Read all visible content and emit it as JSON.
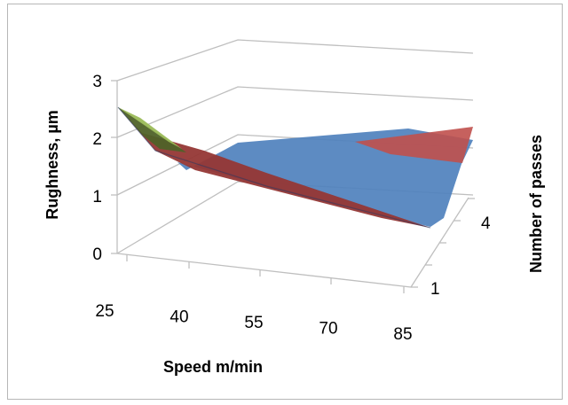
{
  "chart_data": {
    "type": "surface",
    "xlabel": "Speed m/min",
    "ylabel": "Rughness, µm",
    "zlabel": "Number of passes",
    "x": [
      25,
      40,
      55,
      70,
      85
    ],
    "passes": [
      1,
      4
    ],
    "ylim": [
      0,
      3
    ],
    "y_ticks": [
      "0",
      "1",
      "2",
      "3"
    ],
    "x_ticks": [
      "25",
      "40",
      "55",
      "70",
      "85"
    ],
    "z_ticks": [
      "1",
      "4"
    ],
    "series": [
      {
        "passes": 1,
        "values": [
          2.5,
          1.8,
          1.1,
          0.6,
          0.45
        ]
      },
      {
        "passes": 4,
        "values": [
          2.3,
          1.4,
          0.9,
          1.4,
          2.3
        ]
      }
    ],
    "bands": [
      {
        "range": "0-1",
        "color": "#4472c4"
      },
      {
        "range": "1-2",
        "color": "#c0504d"
      },
      {
        "range": "2-3",
        "color": "#9bbb59"
      }
    ],
    "grid": true,
    "legend": "none"
  }
}
